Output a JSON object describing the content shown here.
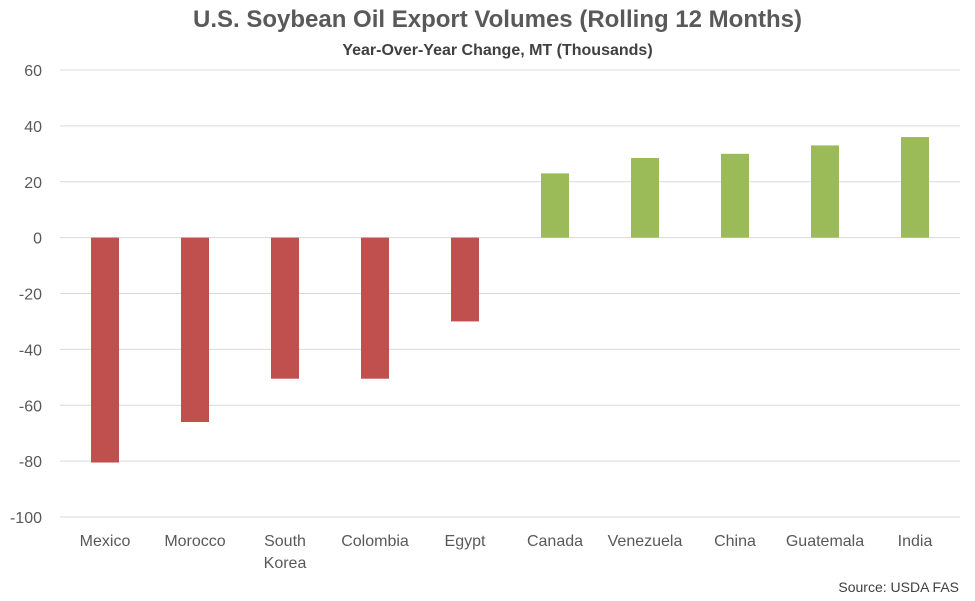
{
  "chart_data": {
    "type": "bar",
    "title": "U.S. Soybean Oil Export Volumes (Rolling 12 Months)",
    "subtitle": "Year-Over-Year Change, MT (Thousands)",
    "categories": [
      "Mexico",
      "Morocco",
      "South Korea",
      "Colombia",
      "Egypt",
      "Canada",
      "Venezuela",
      "China",
      "Guatemala",
      "India"
    ],
    "category_label_lines": [
      [
        "Mexico"
      ],
      [
        "Morocco"
      ],
      [
        "South",
        "Korea"
      ],
      [
        "Colombia"
      ],
      [
        "Egypt"
      ],
      [
        "Canada"
      ],
      [
        "Venezuela"
      ],
      [
        "China"
      ],
      [
        "Guatemala"
      ],
      [
        "India"
      ]
    ],
    "values": [
      -80.5,
      -66,
      -50.5,
      -50.5,
      -30,
      23,
      28.5,
      30,
      33,
      36
    ],
    "ylim": [
      -100,
      60
    ],
    "yticks": [
      60,
      40,
      20,
      0,
      -20,
      -40,
      -60,
      -80,
      -100
    ],
    "grid": true,
    "colors": {
      "negative": "#C0504D",
      "positive": "#9BBB59",
      "grid": "#D9D9D9"
    },
    "source": "Source: USDA FAS"
  }
}
